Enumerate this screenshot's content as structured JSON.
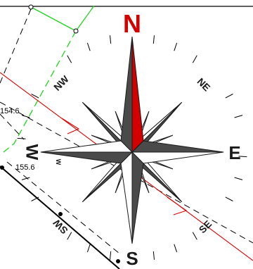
{
  "map": {
    "compass": {
      "labels": {
        "north": "N",
        "south": "S",
        "east": "E",
        "west": "W",
        "northeast": "NE",
        "northwest": "NW",
        "southeast": "SE",
        "southwest": "SW"
      },
      "inner_west_letter": "W"
    },
    "dimension_labels": [
      "154.6",
      "155.6"
    ],
    "colors": {
      "north_accent": "#d40000",
      "star_dark": "#4a4a4a",
      "star_light": "#ffffff",
      "outline": "#1a1a1a",
      "red_line": "#e00000",
      "green_boundary": "#1fd41f",
      "black_line": "#000000",
      "background": "#ffffff"
    }
  }
}
